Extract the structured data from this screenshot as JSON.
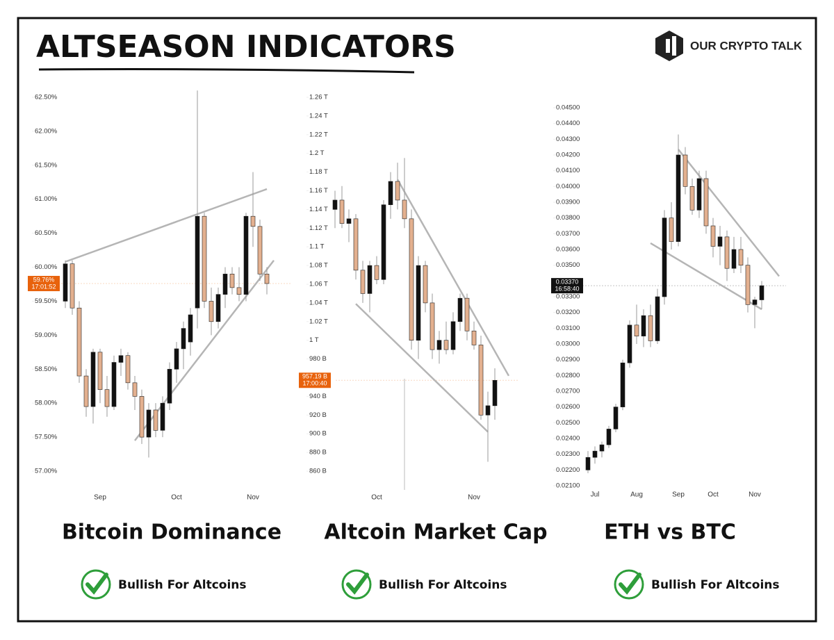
{
  "header": {
    "title": "ALTSEASON INDICATORS",
    "logo": "OUR CRYPTO TALK"
  },
  "chart_data": [
    {
      "type": "candlestick",
      "title": "Bitcoin Dominance",
      "verdict": "Bullish For Altcoins",
      "up_color": "#111111",
      "down_color": "#e3b08f",
      "categories": [
        null,
        null,
        null,
        null,
        null,
        "Sep",
        null,
        null,
        null,
        null,
        null,
        null,
        null,
        null,
        null,
        null,
        "Oct",
        null,
        null,
        null,
        null,
        null,
        null,
        null,
        null,
        null,
        null,
        "Nov",
        null,
        null
      ],
      "open": [
        59.5,
        60.05,
        59.4,
        58.4,
        57.95,
        58.75,
        58.2,
        57.95,
        58.6,
        58.7,
        58.3,
        58.1,
        57.5,
        57.9,
        57.6,
        58.0,
        58.5,
        58.8,
        58.9,
        59.4,
        60.75,
        59.5,
        59.2,
        59.6,
        59.9,
        59.7,
        59.6,
        60.75,
        60.6,
        59.9
      ],
      "high": [
        60.1,
        60.1,
        59.5,
        58.5,
        58.8,
        58.8,
        58.4,
        58.7,
        58.8,
        58.75,
        58.4,
        58.2,
        58.0,
        58.0,
        58.1,
        58.6,
        58.9,
        59.2,
        59.4,
        62.6,
        60.8,
        59.7,
        59.7,
        60.0,
        60.0,
        60.0,
        60.8,
        61.4,
        60.7,
        60.0
      ],
      "low": [
        59.4,
        59.3,
        58.3,
        57.8,
        57.7,
        58.0,
        57.8,
        57.9,
        58.4,
        58.2,
        57.9,
        57.4,
        57.2,
        57.5,
        57.5,
        57.9,
        58.3,
        58.5,
        58.7,
        59.1,
        59.4,
        59.0,
        59.1,
        59.4,
        59.6,
        59.5,
        59.5,
        60.3,
        59.8,
        59.6
      ],
      "close": [
        60.05,
        59.4,
        58.4,
        57.95,
        58.75,
        58.2,
        57.95,
        58.6,
        58.7,
        58.3,
        58.1,
        57.5,
        57.9,
        57.6,
        58.0,
        58.5,
        58.8,
        59.1,
        59.3,
        60.75,
        59.5,
        59.2,
        59.6,
        59.9,
        59.7,
        59.6,
        60.75,
        60.6,
        59.9,
        59.76
      ],
      "ylim": [
        57,
        62.5
      ],
      "yticks": [
        {
          "value": 57,
          "label": "57.00%"
        },
        {
          "value": 57.5,
          "label": "57.50%"
        },
        {
          "value": 58,
          "label": "58.00%"
        },
        {
          "value": 58.5,
          "label": "58.50%"
        },
        {
          "value": 59,
          "label": "59.00%"
        },
        {
          "value": 59.5,
          "label": "59.50%"
        },
        {
          "value": 60,
          "label": "60.00%"
        },
        {
          "value": 60.5,
          "label": "60.50%"
        },
        {
          "value": 61,
          "label": "61.00%"
        },
        {
          "value": 61.5,
          "label": "61.50%"
        },
        {
          "value": 62,
          "label": "62.00%"
        },
        {
          "value": 62.5,
          "label": "62.50%"
        }
      ],
      "trendlines": [
        {
          "x": [
            0,
            29
          ],
          "y": [
            60.08,
            61.15
          ]
        },
        {
          "x": [
            10,
            30
          ],
          "y": [
            57.45,
            60.1
          ]
        }
      ],
      "price_tag": {
        "value": 59.76,
        "label": "59.76%",
        "time": "17:01:52",
        "color": "#e8620c"
      }
    },
    {
      "type": "candlestick",
      "title": "Altcoin Market Cap",
      "verdict": "Bullish For Altcoins",
      "up_color": "#111111",
      "down_color": "#e3b08f",
      "categories": [
        null,
        null,
        null,
        null,
        null,
        null,
        "Oct",
        null,
        null,
        null,
        null,
        null,
        null,
        null,
        null,
        null,
        null,
        null,
        null,
        null,
        "Nov",
        null,
        null,
        null
      ],
      "open": [
        1140,
        1150,
        1125,
        1130,
        1075,
        1050,
        1080,
        1065,
        1145,
        1170,
        1150,
        1130,
        1000,
        1080,
        1040,
        990,
        1000,
        990,
        1020,
        1045,
        1010,
        995,
        920,
        930
      ],
      "high": [
        1160,
        1165,
        1140,
        1135,
        1085,
        1085,
        1090,
        1150,
        1180,
        1190,
        1195,
        1140,
        1090,
        1085,
        1050,
        1010,
        1020,
        1030,
        1050,
        1050,
        1020,
        1005,
        945,
        970
      ],
      "low": [
        1120,
        1120,
        1105,
        1065,
        1040,
        1030,
        1060,
        1060,
        1130,
        1140,
        1120,
        990,
        980,
        1030,
        980,
        975,
        985,
        985,
        1010,
        1000,
        990,
        915,
        870,
        915
      ],
      "close": [
        1150,
        1125,
        1130,
        1075,
        1050,
        1080,
        1065,
        1145,
        1170,
        1150,
        1130,
        1000,
        1080,
        1040,
        990,
        1000,
        990,
        1020,
        1045,
        1010,
        995,
        920,
        930,
        957.19
      ],
      "ylim": [
        860,
        1260
      ],
      "yticks": [
        {
          "value": 860,
          "label": "860 B"
        },
        {
          "value": 880,
          "label": "880 B"
        },
        {
          "value": 900,
          "label": "900 B"
        },
        {
          "value": 920,
          "label": "920 B"
        },
        {
          "value": 940,
          "label": "940 B"
        },
        {
          "value": 960,
          "label": "960 B"
        },
        {
          "value": 980,
          "label": "980 B"
        },
        {
          "value": 1000,
          "label": "1 T"
        },
        {
          "value": 1020,
          "label": "1.02 T"
        },
        {
          "value": 1040,
          "label": "1.04 T"
        },
        {
          "value": 1060,
          "label": "1.06 T"
        },
        {
          "value": 1080,
          "label": "1.08 T"
        },
        {
          "value": 1100,
          "label": "1.1 T"
        },
        {
          "value": 1120,
          "label": "1.12 T"
        },
        {
          "value": 1140,
          "label": "1.14 T"
        },
        {
          "value": 1160,
          "label": "1.16 T"
        },
        {
          "value": 1180,
          "label": "1.18 T"
        },
        {
          "value": 1200,
          "label": "1.2 T"
        },
        {
          "value": 1220,
          "label": "1.22 T"
        },
        {
          "value": 1240,
          "label": "1.24 T"
        },
        {
          "value": 1260,
          "label": "1.26 T"
        }
      ],
      "trendlines": [
        {
          "x": [
            9,
            25
          ],
          "y": [
            1172,
            962
          ]
        },
        {
          "x": [
            3,
            22
          ],
          "y": [
            1039,
            902
          ]
        }
      ],
      "price_tag": {
        "value": 957.19,
        "label": "957.19 B",
        "time": "17:00:40",
        "color": "#e8620c"
      }
    },
    {
      "type": "candlestick",
      "title": "ETH vs BTC",
      "verdict": "Bullish For Altcoins",
      "up_color": "#111111",
      "down_color": "#e3b08f",
      "categories": [
        null,
        "Jul",
        null,
        null,
        null,
        null,
        null,
        "Aug",
        null,
        null,
        null,
        null,
        null,
        "Sep",
        null,
        null,
        null,
        null,
        "Oct",
        null,
        null,
        null,
        null,
        null,
        "Nov",
        null
      ],
      "open": [
        0.022,
        0.0228,
        0.0232,
        0.0236,
        0.0246,
        0.026,
        0.0288,
        0.0312,
        0.0305,
        0.0318,
        0.0302,
        0.033,
        0.038,
        0.0365,
        0.042,
        0.04,
        0.0385,
        0.0405,
        0.0375,
        0.0362,
        0.0368,
        0.0348,
        0.036,
        0.035,
        0.0325,
        0.0328
      ],
      "high": [
        0.0232,
        0.0235,
        0.0238,
        0.0248,
        0.0262,
        0.029,
        0.0315,
        0.0325,
        0.0322,
        0.0325,
        0.0335,
        0.0385,
        0.039,
        0.0433,
        0.0425,
        0.0405,
        0.041,
        0.041,
        0.038,
        0.0375,
        0.0372,
        0.0368,
        0.0368,
        0.0355,
        0.033,
        0.034
      ],
      "low": [
        0.0218,
        0.0224,
        0.0228,
        0.0234,
        0.0244,
        0.0258,
        0.0285,
        0.03,
        0.0298,
        0.0298,
        0.03,
        0.0325,
        0.036,
        0.0362,
        0.0395,
        0.0382,
        0.038,
        0.037,
        0.0355,
        0.035,
        0.034,
        0.0345,
        0.0345,
        0.032,
        0.031,
        0.0322
      ],
      "close": [
        0.0228,
        0.0232,
        0.0236,
        0.0246,
        0.026,
        0.0288,
        0.0312,
        0.0305,
        0.0318,
        0.0302,
        0.033,
        0.038,
        0.0365,
        0.042,
        0.04,
        0.0385,
        0.0405,
        0.0375,
        0.0362,
        0.0368,
        0.0348,
        0.036,
        0.035,
        0.0325,
        0.0328,
        0.0337
      ],
      "ylim": [
        0.021,
        0.045
      ],
      "yticks": [
        {
          "value": 0.021,
          "label": "0.02100"
        },
        {
          "value": 0.022,
          "label": "0.02200"
        },
        {
          "value": 0.023,
          "label": "0.02300"
        },
        {
          "value": 0.024,
          "label": "0.02400"
        },
        {
          "value": 0.025,
          "label": "0.02500"
        },
        {
          "value": 0.026,
          "label": "0.02600"
        },
        {
          "value": 0.027,
          "label": "0.02700"
        },
        {
          "value": 0.028,
          "label": "0.02800"
        },
        {
          "value": 0.029,
          "label": "0.02900"
        },
        {
          "value": 0.03,
          "label": "0.03000"
        },
        {
          "value": 0.031,
          "label": "0.03100"
        },
        {
          "value": 0.032,
          "label": "0.03200"
        },
        {
          "value": 0.033,
          "label": "0.03300"
        },
        {
          "value": 0.034,
          "label": "0.03400"
        },
        {
          "value": 0.035,
          "label": "0.03500"
        },
        {
          "value": 0.036,
          "label": "0.03600"
        },
        {
          "value": 0.037,
          "label": "0.03700"
        },
        {
          "value": 0.038,
          "label": "0.03800"
        },
        {
          "value": 0.039,
          "label": "0.03900"
        },
        {
          "value": 0.04,
          "label": "0.04000"
        },
        {
          "value": 0.041,
          "label": "0.04100"
        },
        {
          "value": 0.042,
          "label": "0.04200"
        },
        {
          "value": 0.043,
          "label": "0.04300"
        },
        {
          "value": 0.044,
          "label": "0.04400"
        },
        {
          "value": 0.045,
          "label": "0.04500"
        }
      ],
      "trendlines": [
        {
          "x": [
            13,
            27.5
          ],
          "y": [
            0.04235,
            0.0343
          ]
        },
        {
          "x": [
            9,
            25
          ],
          "y": [
            0.0364,
            0.0322
          ]
        }
      ],
      "price_tag": {
        "value": 0.0337,
        "label": "0.03370",
        "time": "16:58:40",
        "color": "#111111"
      }
    }
  ]
}
